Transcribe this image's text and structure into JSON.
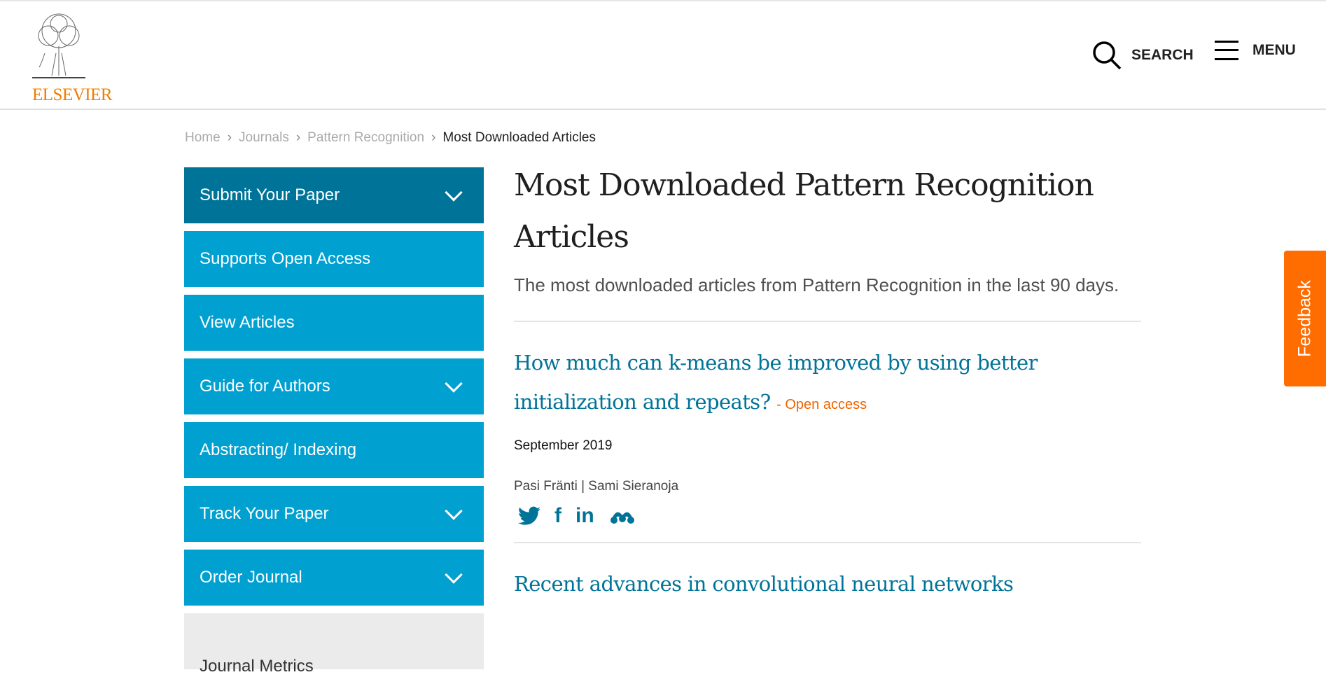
{
  "header": {
    "logo_text": "ELSEVIER",
    "search_label": "SEARCH",
    "menu_label": "MENU"
  },
  "breadcrumb": [
    {
      "label": "Home"
    },
    {
      "label": "Journals"
    },
    {
      "label": "Pattern Recognition"
    },
    {
      "label": "Most Downloaded Articles"
    }
  ],
  "sidebar": {
    "items": [
      {
        "label": "Submit Your Paper",
        "chevron": true
      },
      {
        "label": "Supports Open Access",
        "chevron": false
      },
      {
        "label": "View Articles",
        "chevron": false
      },
      {
        "label": "Guide for Authors",
        "chevron": true
      },
      {
        "label": "Abstracting/ Indexing",
        "chevron": false
      },
      {
        "label": "Track Your Paper",
        "chevron": true
      },
      {
        "label": "Order Journal",
        "chevron": true
      },
      {
        "label": "Journal Metrics",
        "chevron": false
      }
    ]
  },
  "main": {
    "title": "Most Downloaded Pattern Recognition Articles",
    "subtitle": "The most downloaded articles from Pattern Recognition in the last 90 days.",
    "articles": [
      {
        "title": "How much can k-means be improved by using better initialization and repeats?",
        "badge": "- Open access",
        "date": "September 2019",
        "authors": "Pasi Fränti | Sami Sieranoja"
      },
      {
        "title": "Recent advances in convolutional neural networks"
      }
    ]
  },
  "feedback_label": "Feedback",
  "colors": {
    "primary": "#00a0d1",
    "primary_dark": "#007398",
    "link": "#007398",
    "open_access": "#f06400",
    "feedback": "#ff6c00",
    "logo": "#f07c00"
  }
}
